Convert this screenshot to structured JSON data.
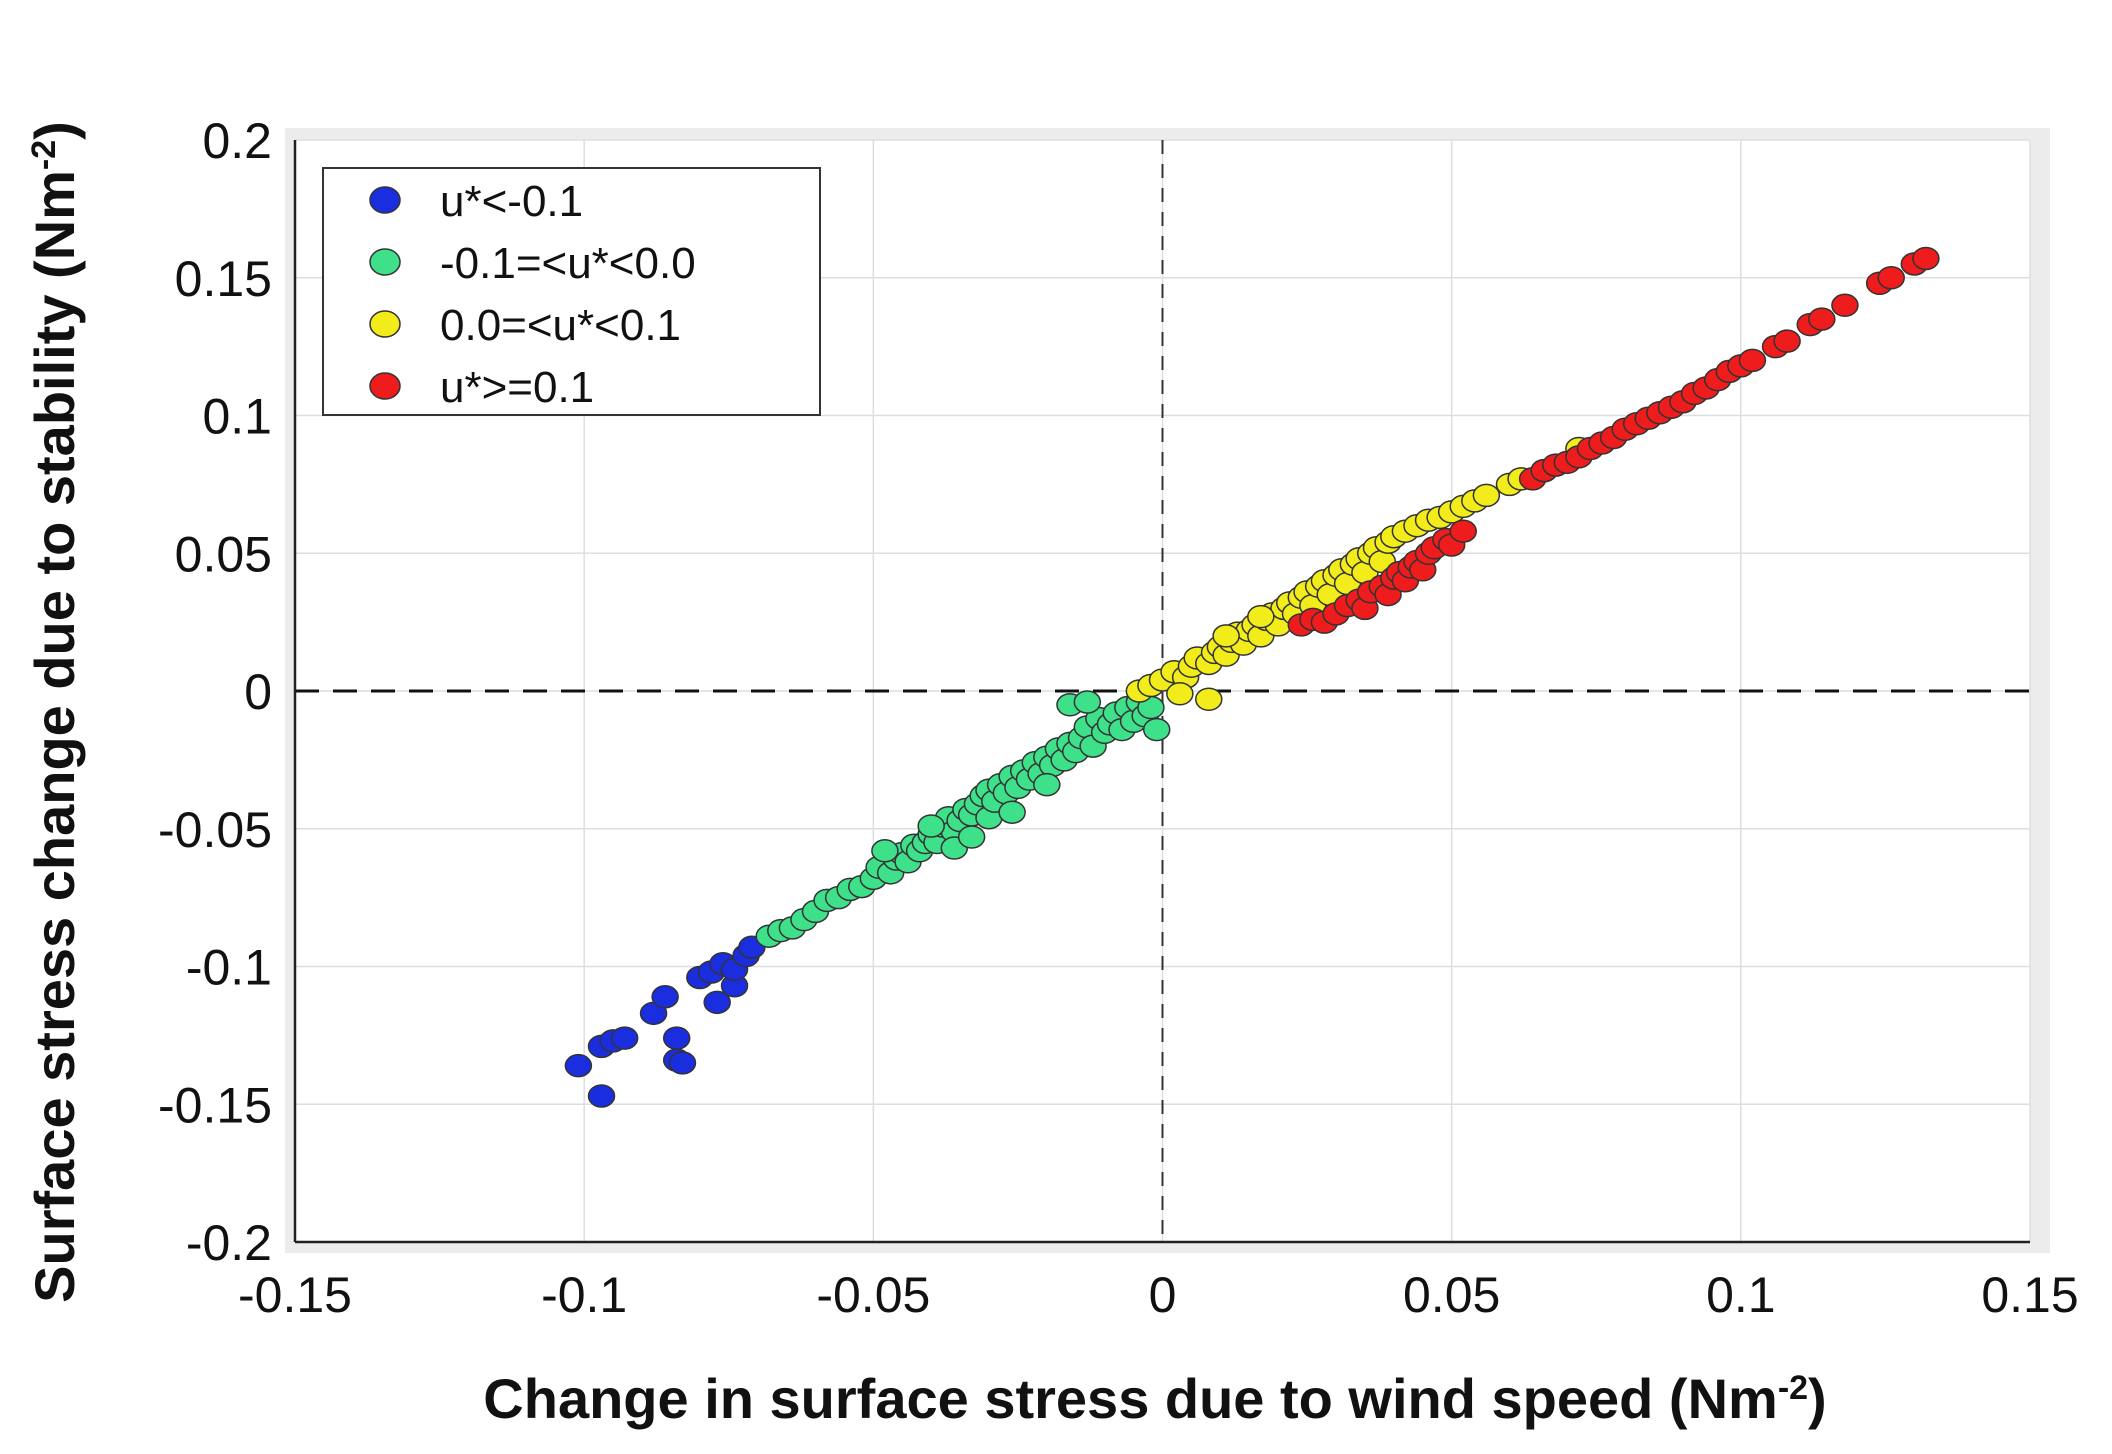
{
  "chart_data": {
    "type": "scatter",
    "title": "",
    "xlabel": "Change in surface stress due to wind speed (Nm",
    "xlabel_sup": "-2",
    "xlabel_end": ")",
    "ylabel": "Surface stress change due to stability (Nm",
    "ylabel_sup": "-2",
    "ylabel_end": ")",
    "xlim": [
      -0.15,
      0.15
    ],
    "ylim": [
      -0.2,
      0.2
    ],
    "xticks": [
      -0.15,
      -0.1,
      -0.05,
      0,
      0.05,
      0.1,
      0.15
    ],
    "xtick_labels": [
      "-0.15",
      "-0.1",
      "-0.05",
      "0",
      "0.05",
      "0.1",
      "0.15"
    ],
    "yticks": [
      -0.2,
      -0.15,
      -0.1,
      -0.05,
      0,
      0.05,
      0.1,
      0.15,
      0.2
    ],
    "ytick_labels": [
      "-0.2",
      "-0.15",
      "-0.1",
      "-0.05",
      "0",
      "0.05",
      "0.1",
      "0.15",
      "0.2"
    ],
    "grid": true,
    "legend_position": "top-left",
    "reference_lines": {
      "x": 0,
      "y": 0,
      "style": "dashed"
    },
    "series": [
      {
        "name": "u*<-0.1",
        "color": "#1a2ee0",
        "points": [
          [
            -0.101,
            -0.136
          ],
          [
            -0.097,
            -0.147
          ],
          [
            -0.097,
            -0.129
          ],
          [
            -0.095,
            -0.127
          ],
          [
            -0.093,
            -0.126
          ],
          [
            -0.088,
            -0.117
          ],
          [
            -0.086,
            -0.111
          ],
          [
            -0.084,
            -0.126
          ],
          [
            -0.084,
            -0.134
          ],
          [
            -0.083,
            -0.135
          ],
          [
            -0.08,
            -0.104
          ],
          [
            -0.078,
            -0.102
          ],
          [
            -0.077,
            -0.113
          ],
          [
            -0.076,
            -0.099
          ],
          [
            -0.074,
            -0.107
          ],
          [
            -0.074,
            -0.101
          ],
          [
            -0.072,
            -0.096
          ],
          [
            -0.071,
            -0.093
          ]
        ]
      },
      {
        "name": "-0.1=<u*<0.0",
        "color": "#3ee08a",
        "points": [
          [
            -0.068,
            -0.089
          ],
          [
            -0.066,
            -0.087
          ],
          [
            -0.064,
            -0.086
          ],
          [
            -0.062,
            -0.083
          ],
          [
            -0.06,
            -0.08
          ],
          [
            -0.058,
            -0.076
          ],
          [
            -0.056,
            -0.075
          ],
          [
            -0.054,
            -0.072
          ],
          [
            -0.052,
            -0.071
          ],
          [
            -0.05,
            -0.068
          ],
          [
            -0.049,
            -0.064
          ],
          [
            -0.047,
            -0.066
          ],
          [
            -0.046,
            -0.061
          ],
          [
            -0.045,
            -0.059
          ],
          [
            -0.044,
            -0.062
          ],
          [
            -0.043,
            -0.056
          ],
          [
            -0.042,
            -0.058
          ],
          [
            -0.041,
            -0.055
          ],
          [
            -0.04,
            -0.052
          ],
          [
            -0.039,
            -0.055
          ],
          [
            -0.038,
            -0.049
          ],
          [
            -0.037,
            -0.046
          ],
          [
            -0.036,
            -0.051
          ],
          [
            -0.035,
            -0.047
          ],
          [
            -0.034,
            -0.043
          ],
          [
            -0.033,
            -0.045
          ],
          [
            -0.032,
            -0.041
          ],
          [
            -0.031,
            -0.038
          ],
          [
            -0.03,
            -0.046
          ],
          [
            -0.03,
            -0.036
          ],
          [
            -0.029,
            -0.04
          ],
          [
            -0.028,
            -0.034
          ],
          [
            -0.027,
            -0.037
          ],
          [
            -0.026,
            -0.031
          ],
          [
            -0.025,
            -0.035
          ],
          [
            -0.024,
            -0.029
          ],
          [
            -0.023,
            -0.032
          ],
          [
            -0.022,
            -0.026
          ],
          [
            -0.021,
            -0.03
          ],
          [
            -0.02,
            -0.024
          ],
          [
            -0.019,
            -0.027
          ],
          [
            -0.018,
            -0.021
          ],
          [
            -0.017,
            -0.025
          ],
          [
            -0.016,
            -0.019
          ],
          [
            -0.015,
            -0.022
          ],
          [
            -0.014,
            -0.017
          ],
          [
            -0.013,
            -0.013
          ],
          [
            -0.012,
            -0.02
          ],
          [
            -0.011,
            -0.01
          ],
          [
            -0.01,
            -0.015
          ],
          [
            -0.009,
            -0.012
          ],
          [
            -0.008,
            -0.008
          ],
          [
            -0.007,
            -0.014
          ],
          [
            -0.006,
            -0.006
          ],
          [
            -0.005,
            -0.011
          ],
          [
            -0.004,
            -0.004
          ],
          [
            -0.003,
            -0.009
          ],
          [
            -0.002,
            -0.006
          ],
          [
            -0.001,
            -0.014
          ],
          [
            -0.036,
            -0.057
          ],
          [
            -0.033,
            -0.053
          ],
          [
            -0.04,
            -0.049
          ],
          [
            -0.026,
            -0.044
          ],
          [
            -0.02,
            -0.034
          ],
          [
            -0.048,
            -0.058
          ],
          [
            -0.016,
            -0.005
          ],
          [
            -0.013,
            -0.004
          ]
        ]
      },
      {
        "name": "0.0=<u*<0.1",
        "color": "#f2ec1a",
        "points": [
          [
            -0.004,
            0.0
          ],
          [
            -0.002,
            0.002
          ],
          [
            0.0,
            0.004
          ],
          [
            0.002,
            0.007
          ],
          [
            0.004,
            0.005
          ],
          [
            0.005,
            0.009
          ],
          [
            0.006,
            0.012
          ],
          [
            0.008,
            0.01
          ],
          [
            0.009,
            0.014
          ],
          [
            0.01,
            0.016
          ],
          [
            0.011,
            0.013
          ],
          [
            0.012,
            0.018
          ],
          [
            0.013,
            0.021
          ],
          [
            0.014,
            0.017
          ],
          [
            0.015,
            0.022
          ],
          [
            0.016,
            0.024
          ],
          [
            0.017,
            0.02
          ],
          [
            0.018,
            0.026
          ],
          [
            0.019,
            0.028
          ],
          [
            0.02,
            0.024
          ],
          [
            0.021,
            0.03
          ],
          [
            0.022,
            0.032
          ],
          [
            0.023,
            0.028
          ],
          [
            0.024,
            0.034
          ],
          [
            0.025,
            0.036
          ],
          [
            0.026,
            0.031
          ],
          [
            0.027,
            0.038
          ],
          [
            0.028,
            0.04
          ],
          [
            0.029,
            0.035
          ],
          [
            0.03,
            0.042
          ],
          [
            0.031,
            0.044
          ],
          [
            0.032,
            0.039
          ],
          [
            0.033,
            0.046
          ],
          [
            0.034,
            0.048
          ],
          [
            0.035,
            0.043
          ],
          [
            0.036,
            0.05
          ],
          [
            0.037,
            0.052
          ],
          [
            0.038,
            0.047
          ],
          [
            0.039,
            0.054
          ],
          [
            0.04,
            0.056
          ],
          [
            0.042,
            0.058
          ],
          [
            0.044,
            0.06
          ],
          [
            0.046,
            0.062
          ],
          [
            0.048,
            0.063
          ],
          [
            0.05,
            0.065
          ],
          [
            0.052,
            0.067
          ],
          [
            0.054,
            0.069
          ],
          [
            0.056,
            0.071
          ],
          [
            0.06,
            0.075
          ],
          [
            0.062,
            0.077
          ],
          [
            0.066,
            0.08
          ],
          [
            0.072,
            0.088
          ],
          [
            0.008,
            -0.003
          ],
          [
            0.003,
            -0.001
          ],
          [
            0.011,
            0.02
          ],
          [
            0.017,
            0.027
          ]
        ]
      },
      {
        "name": "u*>=0.1",
        "color": "#ee1c1c",
        "points": [
          [
            0.024,
            0.024
          ],
          [
            0.026,
            0.026
          ],
          [
            0.028,
            0.025
          ],
          [
            0.03,
            0.028
          ],
          [
            0.032,
            0.031
          ],
          [
            0.034,
            0.033
          ],
          [
            0.035,
            0.03
          ],
          [
            0.036,
            0.036
          ],
          [
            0.038,
            0.038
          ],
          [
            0.039,
            0.035
          ],
          [
            0.04,
            0.041
          ],
          [
            0.041,
            0.043
          ],
          [
            0.042,
            0.04
          ],
          [
            0.043,
            0.045
          ],
          [
            0.044,
            0.047
          ],
          [
            0.045,
            0.044
          ],
          [
            0.046,
            0.05
          ],
          [
            0.047,
            0.052
          ],
          [
            0.049,
            0.055
          ],
          [
            0.05,
            0.053
          ],
          [
            0.052,
            0.058
          ],
          [
            0.064,
            0.077
          ],
          [
            0.066,
            0.08
          ],
          [
            0.068,
            0.082
          ],
          [
            0.07,
            0.083
          ],
          [
            0.072,
            0.085
          ],
          [
            0.074,
            0.088
          ],
          [
            0.076,
            0.09
          ],
          [
            0.078,
            0.092
          ],
          [
            0.08,
            0.095
          ],
          [
            0.082,
            0.097
          ],
          [
            0.084,
            0.099
          ],
          [
            0.086,
            0.101
          ],
          [
            0.088,
            0.103
          ],
          [
            0.09,
            0.105
          ],
          [
            0.092,
            0.108
          ],
          [
            0.094,
            0.11
          ],
          [
            0.096,
            0.113
          ],
          [
            0.098,
            0.116
          ],
          [
            0.1,
            0.118
          ],
          [
            0.102,
            0.12
          ],
          [
            0.106,
            0.125
          ],
          [
            0.108,
            0.127
          ],
          [
            0.112,
            0.133
          ],
          [
            0.114,
            0.135
          ],
          [
            0.118,
            0.14
          ],
          [
            0.124,
            0.148
          ],
          [
            0.126,
            0.15
          ],
          [
            0.13,
            0.155
          ],
          [
            0.132,
            0.157
          ]
        ]
      }
    ]
  }
}
